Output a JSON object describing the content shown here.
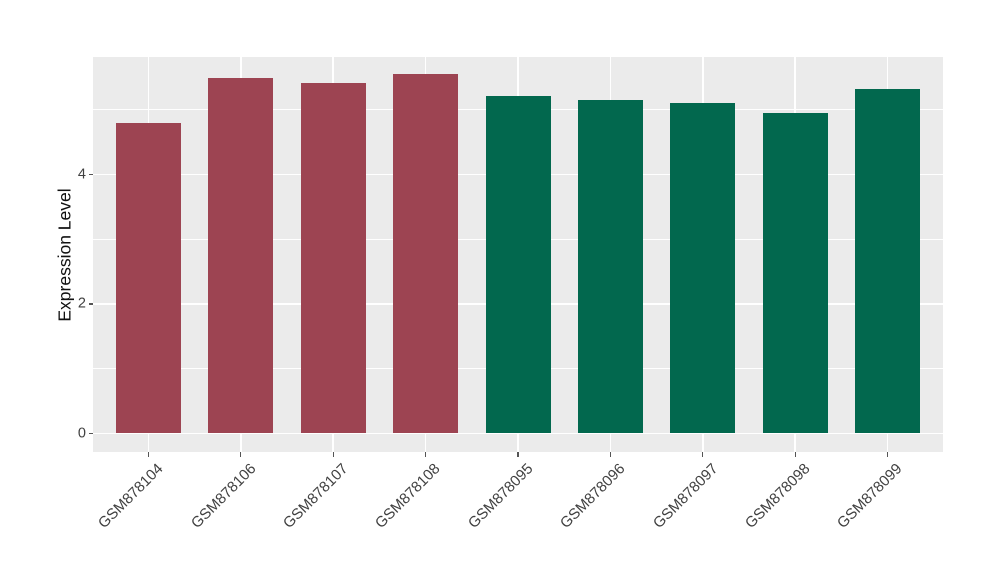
{
  "chart_data": {
    "type": "bar",
    "title": "",
    "xlabel": "",
    "ylabel": "Expression Level",
    "categories": [
      "GSM878104",
      "GSM878106",
      "GSM878107",
      "GSM878108",
      "GSM878095",
      "GSM878096",
      "GSM878097",
      "GSM878098",
      "GSM878099"
    ],
    "values": [
      4.79,
      5.49,
      5.41,
      5.55,
      5.22,
      5.15,
      5.11,
      4.95,
      5.32
    ],
    "groups": [
      "group1",
      "group1",
      "group1",
      "group1",
      "group2",
      "group2",
      "group2",
      "group2",
      "group2"
    ],
    "group_colors": {
      "group1": "#9D4452",
      "group2": "#02684E"
    },
    "y_ticks": [
      0,
      2,
      4
    ],
    "grid_major_y": [
      0,
      2,
      4
    ],
    "grid_minor_y": [
      1,
      3,
      5
    ],
    "ylim": [
      -0.29,
      5.82
    ],
    "bar_width_frac": 0.7,
    "legend": "none",
    "panel_background": "#EBEBEB",
    "grid_color": "#FFFFFF",
    "tick_color": "#555555",
    "label_color": "#404040"
  }
}
